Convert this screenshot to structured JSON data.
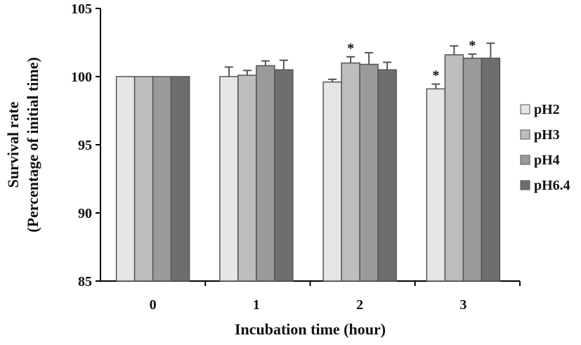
{
  "chart_data": {
    "type": "bar",
    "title": "",
    "xlabel": "Incubation time (hour)",
    "ylabel": [
      "Survival rate",
      "(Percentage of  initial time)"
    ],
    "ylim": [
      85,
      105
    ],
    "yticks": [
      85,
      90,
      95,
      100,
      105
    ],
    "categories": [
      "0",
      "1",
      "2",
      "3"
    ],
    "legend_position": "right",
    "series": [
      {
        "name": "pH2",
        "color": "#e6e6e6",
        "values": [
          100,
          100.0,
          99.6,
          99.1
        ],
        "errors": [
          0,
          0.7,
          0.2,
          0.35
        ],
        "significant": [
          false,
          false,
          false,
          true
        ]
      },
      {
        "name": "pH3",
        "color": "#bdbdbd",
        "values": [
          100,
          100.1,
          101.0,
          101.6
        ],
        "errors": [
          0,
          0.35,
          0.45,
          0.65
        ],
        "significant": [
          false,
          false,
          true,
          false
        ]
      },
      {
        "name": "pH4",
        "color": "#9a9a9a",
        "values": [
          100,
          100.8,
          100.9,
          101.35
        ],
        "errors": [
          0,
          0.35,
          0.85,
          0.3
        ],
        "significant": [
          false,
          false,
          false,
          true
        ]
      },
      {
        "name": "pH6.4",
        "color": "#6e6e6e",
        "values": [
          100,
          100.5,
          100.5,
          101.35
        ],
        "errors": [
          0,
          0.7,
          0.55,
          1.1
        ],
        "significant": [
          false,
          false,
          false,
          false
        ]
      }
    ],
    "significance_marker": "*"
  }
}
